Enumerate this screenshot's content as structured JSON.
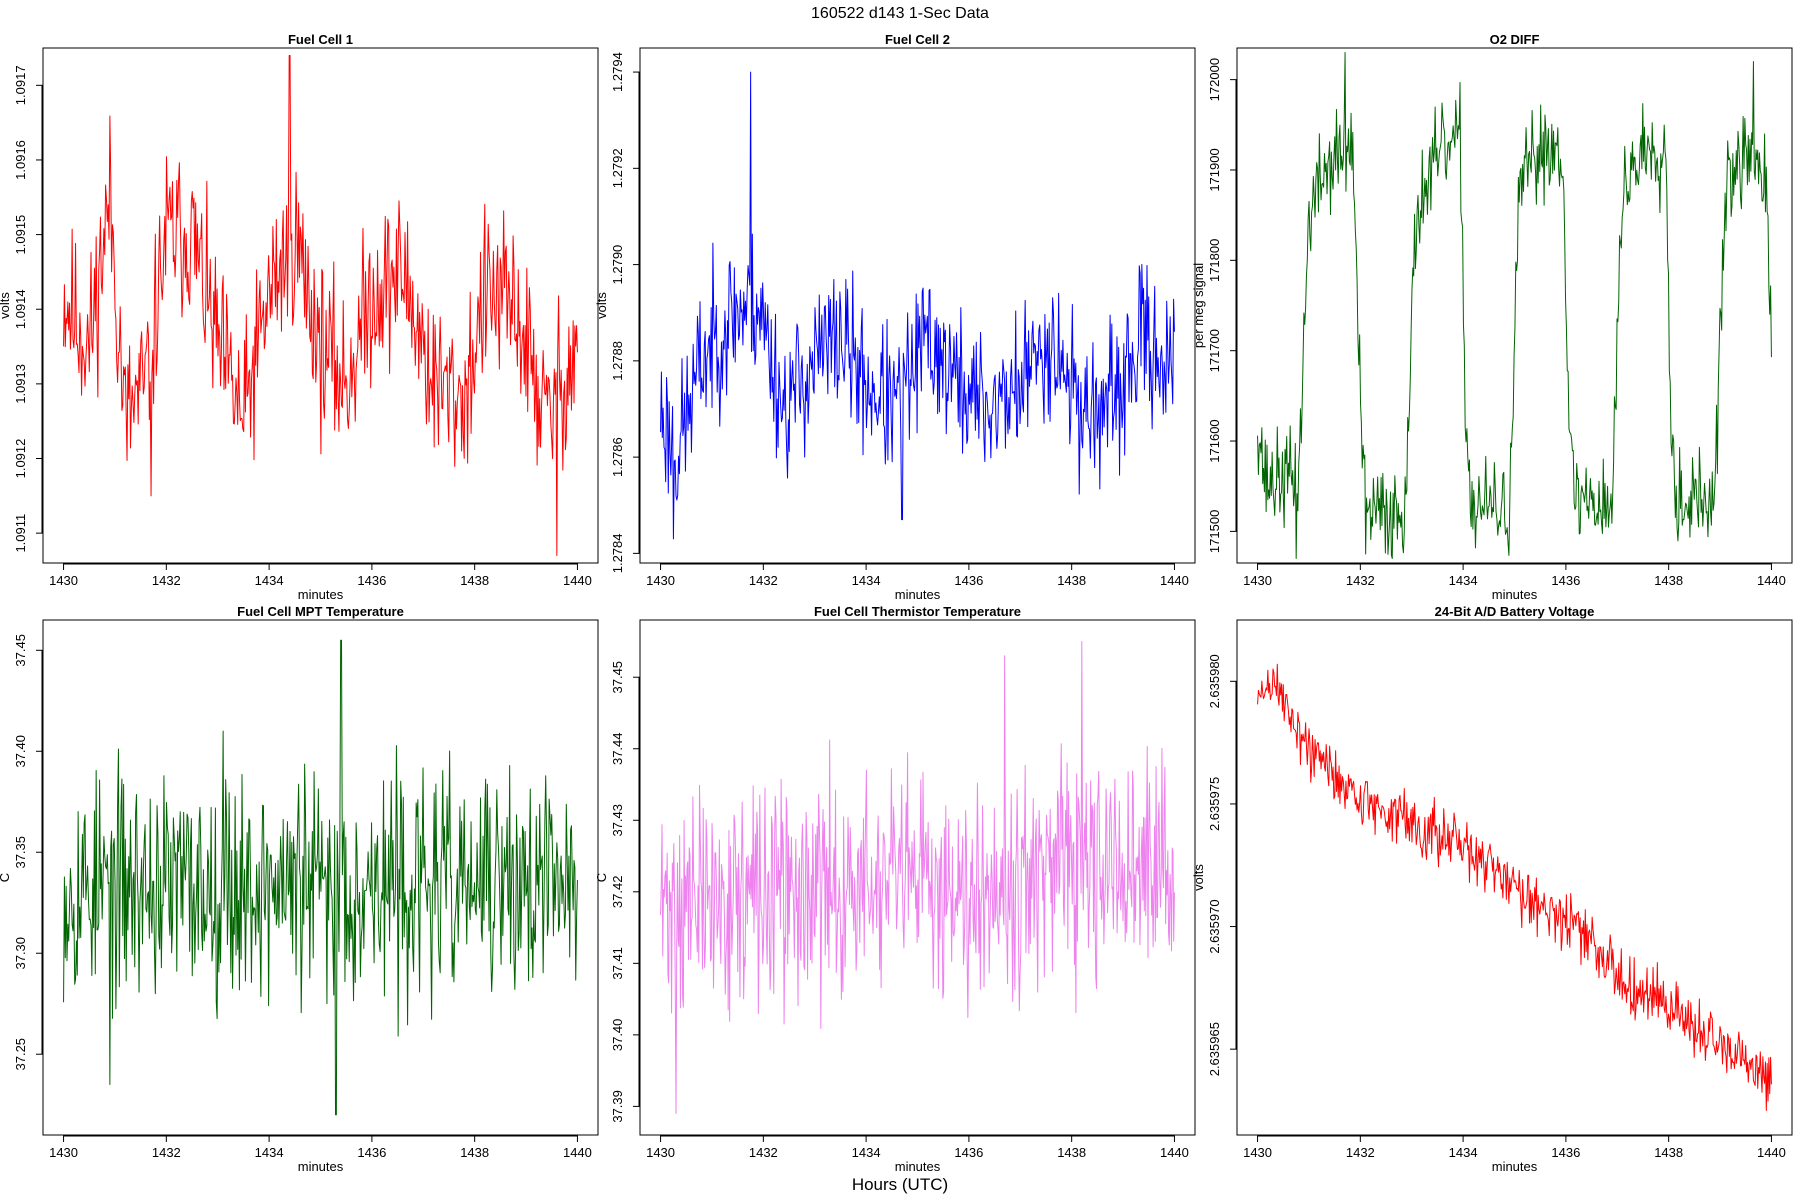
{
  "figure": {
    "title": "160522   d143   1-Sec Data",
    "outer_xlabel": "Hours (UTC)"
  },
  "chart_data": [
    {
      "type": "line",
      "title": "Fuel Cell 1",
      "xlabel": "minutes",
      "ylabel": "volts",
      "color": "#ff0000",
      "xlim": [
        1429.6,
        1440.4
      ],
      "ylim": [
        1.09106,
        1.09175
      ],
      "xticks": [
        1430,
        1432,
        1434,
        1436,
        1438,
        1440
      ],
      "xtick_labels": [
        "1430",
        "1432",
        "1434",
        "1436",
        "1438",
        "1440"
      ],
      "yticks": [
        1.0911,
        1.0912,
        1.0913,
        1.0914,
        1.0915,
        1.0916,
        1.0917
      ],
      "ytick_labels": [
        "1.0911",
        "1.0912",
        "1.0913",
        "1.0914",
        "1.0915",
        "1.0916",
        "1.0917"
      ],
      "keypoints": [
        [
          1430,
          1.09142
        ],
        [
          1430.5,
          1.09135
        ],
        [
          1430.9,
          1.09155
        ],
        [
          1431.2,
          1.09125
        ],
        [
          1431.6,
          1.0913
        ],
        [
          1432.0,
          1.0915
        ],
        [
          1432.5,
          1.0915
        ],
        [
          1433.0,
          1.09135
        ],
        [
          1433.5,
          1.09125
        ],
        [
          1434.0,
          1.09142
        ],
        [
          1434.5,
          1.0915
        ],
        [
          1435.0,
          1.09135
        ],
        [
          1435.5,
          1.0913
        ],
        [
          1436.0,
          1.09142
        ],
        [
          1436.6,
          1.09145
        ],
        [
          1437.2,
          1.0913
        ],
        [
          1437.8,
          1.09128
        ],
        [
          1438.2,
          1.09142
        ],
        [
          1438.8,
          1.0914
        ],
        [
          1439.4,
          1.09125
        ],
        [
          1440,
          1.09135
        ]
      ],
      "noise": 8.5e-05,
      "npoints": 600,
      "spikes": [
        [
          1434.4,
          1.09174
        ],
        [
          1439.6,
          1.09107
        ],
        [
          1431.7,
          1.09115
        ]
      ],
      "seed": 11
    },
    {
      "type": "line",
      "title": "Fuel Cell 2",
      "xlabel": "minutes",
      "ylabel": "volts",
      "color": "#0000ff",
      "xlim": [
        1429.6,
        1440.4
      ],
      "ylim": [
        1.27838,
        1.27945
      ],
      "xticks": [
        1430,
        1432,
        1434,
        1436,
        1438,
        1440
      ],
      "xtick_labels": [
        "1430",
        "1432",
        "1434",
        "1436",
        "1438",
        "1440"
      ],
      "yticks": [
        1.2784,
        1.2786,
        1.2788,
        1.279,
        1.2792,
        1.2794
      ],
      "ytick_labels": [
        "1.2784",
        "1.2786",
        "1.2788",
        "1.2790",
        "1.2792",
        "1.2794"
      ],
      "keypoints": [
        [
          1430,
          1.2787
        ],
        [
          1430.3,
          1.2786
        ],
        [
          1430.8,
          1.2788
        ],
        [
          1431.4,
          1.2789
        ],
        [
          1431.9,
          1.27892
        ],
        [
          1432.4,
          1.2787
        ],
        [
          1433.0,
          1.2788
        ],
        [
          1433.5,
          1.27885
        ],
        [
          1434.0,
          1.27875
        ],
        [
          1434.6,
          1.2787
        ],
        [
          1435.2,
          1.27885
        ],
        [
          1435.8,
          1.27875
        ],
        [
          1436.4,
          1.2787
        ],
        [
          1437.0,
          1.27875
        ],
        [
          1437.6,
          1.27885
        ],
        [
          1438.2,
          1.2787
        ],
        [
          1438.8,
          1.2787
        ],
        [
          1439.4,
          1.27885
        ],
        [
          1440,
          1.27878
        ]
      ],
      "noise": 0.000115,
      "npoints": 600,
      "spikes": [
        [
          1431.75,
          1.2794
        ],
        [
          1430.25,
          1.27843
        ],
        [
          1434.7,
          1.27847
        ]
      ],
      "seed": 23
    },
    {
      "type": "line",
      "title": "O2 DIFF",
      "xlabel": "minutes",
      "ylabel": "per meg signal",
      "color": "#006400",
      "xlim": [
        1429.6,
        1440.4
      ],
      "ylim": [
        171465,
        172035
      ],
      "xticks": [
        1430,
        1432,
        1434,
        1436,
        1438,
        1440
      ],
      "xtick_labels": [
        "1430",
        "1432",
        "1434",
        "1436",
        "1438",
        "1440"
      ],
      "yticks": [
        171500,
        171600,
        171700,
        171800,
        171900,
        172000
      ],
      "ytick_labels": [
        "171500",
        "171600",
        "171700",
        "171800",
        "171900",
        "172000"
      ],
      "keypoints": [
        [
          1430,
          171630
        ],
        [
          1430.15,
          171555
        ],
        [
          1430.8,
          171560
        ],
        [
          1431.0,
          171850
        ],
        [
          1431.3,
          171900
        ],
        [
          1431.85,
          171930
        ],
        [
          1432.0,
          171640
        ],
        [
          1432.1,
          171520
        ],
        [
          1432.85,
          171520
        ],
        [
          1433.1,
          171860
        ],
        [
          1433.6,
          171920
        ],
        [
          1433.95,
          171930
        ],
        [
          1434.05,
          171630
        ],
        [
          1434.15,
          171530
        ],
        [
          1434.9,
          171520
        ],
        [
          1435.1,
          171880
        ],
        [
          1435.6,
          171930
        ],
        [
          1435.95,
          171920
        ],
        [
          1436.05,
          171630
        ],
        [
          1436.15,
          171540
        ],
        [
          1436.9,
          171530
        ],
        [
          1437.1,
          171880
        ],
        [
          1437.6,
          171930
        ],
        [
          1437.95,
          171920
        ],
        [
          1438.05,
          171610
        ],
        [
          1438.15,
          171540
        ],
        [
          1438.9,
          171530
        ],
        [
          1439.1,
          171880
        ],
        [
          1439.6,
          171920
        ],
        [
          1439.9,
          171880
        ],
        [
          1440,
          171680
        ]
      ],
      "noise": 40,
      "npoints": 600,
      "spikes": [
        [
          1431.7,
          172030
        ],
        [
          1432.1,
          171475
        ],
        [
          1439.65,
          172020
        ],
        [
          1430.75,
          171470
        ]
      ],
      "seed": 37
    },
    {
      "type": "line",
      "title": "Fuel Cell MPT Temperature",
      "xlabel": "minutes",
      "ylabel": "C",
      "color": "#006400",
      "xlim": [
        1429.6,
        1440.4
      ],
      "ylim": [
        37.21,
        37.465
      ],
      "xticks": [
        1430,
        1432,
        1434,
        1436,
        1438,
        1440
      ],
      "xtick_labels": [
        "1430",
        "1432",
        "1434",
        "1436",
        "1438",
        "1440"
      ],
      "yticks": [
        37.25,
        37.3,
        37.35,
        37.4,
        37.45
      ],
      "ytick_labels": [
        "37.25",
        "37.30",
        "37.35",
        "37.40",
        "37.45"
      ],
      "keypoints": [
        [
          1430,
          37.333
        ],
        [
          1440,
          37.333
        ]
      ],
      "noise": 0.042,
      "npoints": 600,
      "spikes": [
        [
          1435.4,
          37.455
        ],
        [
          1435.3,
          37.22
        ],
        [
          1430.9,
          37.235
        ],
        [
          1433.1,
          37.41
        ]
      ],
      "seed": 53
    },
    {
      "type": "line",
      "title": "Fuel Cell Thermistor Temperature",
      "xlabel": "minutes",
      "ylabel": "C",
      "color": "#ee82ee",
      "xlim": [
        1429.6,
        1440.4
      ],
      "ylim": [
        37.386,
        37.458
      ],
      "xticks": [
        1430,
        1432,
        1434,
        1436,
        1438,
        1440
      ],
      "xtick_labels": [
        "1430",
        "1432",
        "1434",
        "1436",
        "1438",
        "1440"
      ],
      "yticks": [
        37.39,
        37.4,
        37.41,
        37.42,
        37.43,
        37.44,
        37.45
      ],
      "ytick_labels": [
        "37.39",
        "37.40",
        "37.41",
        "37.42",
        "37.43",
        "37.44",
        "37.45"
      ],
      "keypoints": [
        [
          1430,
          37.418
        ],
        [
          1435,
          37.421
        ],
        [
          1440,
          37.423
        ]
      ],
      "noise": 0.0115,
      "npoints": 700,
      "spikes": [
        [
          1430.3,
          37.389
        ],
        [
          1438.2,
          37.455
        ],
        [
          1436.7,
          37.453
        ]
      ],
      "seed": 71
    },
    {
      "type": "line",
      "title": "24-Bit A/D Battery Voltage",
      "xlabel": "minutes",
      "ylabel": "volts",
      "color": "#ff0000",
      "xlim": [
        1429.6,
        1440.4
      ],
      "ylim": [
        2.6359615,
        2.6359825
      ],
      "xticks": [
        1430,
        1432,
        1434,
        1436,
        1438,
        1440
      ],
      "xtick_labels": [
        "1430",
        "1432",
        "1434",
        "1436",
        "1438",
        "1440"
      ],
      "yticks": [
        2.635965,
        2.63597,
        2.635975,
        2.63598
      ],
      "ytick_labels": [
        "2.635965",
        "2.635970",
        "2.635975",
        "2.635980"
      ],
      "keypoints": [
        [
          1430,
          2.6359792
        ],
        [
          1430.3,
          2.63598
        ],
        [
          1431.0,
          2.6359772
        ],
        [
          1432.0,
          2.6359752
        ],
        [
          1433.0,
          2.6359742
        ],
        [
          1434.0,
          2.6359732
        ],
        [
          1435.0,
          2.6359717
        ],
        [
          1436.0,
          2.6359702
        ],
        [
          1436.4,
          2.6359696
        ],
        [
          1437.0,
          2.635968
        ],
        [
          1438.0,
          2.6359668
        ],
        [
          1439.0,
          2.635965
        ],
        [
          1440,
          2.6359637
        ]
      ],
      "noise": 9e-07,
      "npoints": 600,
      "spikes": [
        [
          1430.3,
          2.6359805
        ],
        [
          1439.9,
          2.6359625
        ]
      ],
      "seed": 89
    }
  ]
}
